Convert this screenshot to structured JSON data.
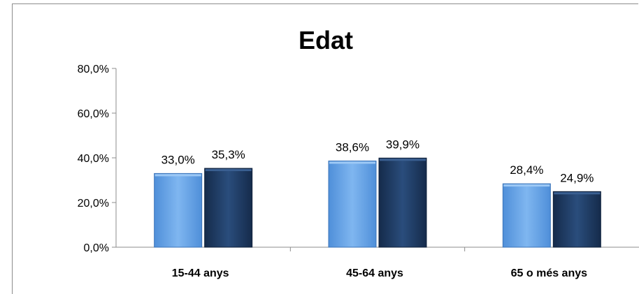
{
  "chart_data": {
    "type": "bar",
    "title": "Edat",
    "xlabel": "",
    "ylabel": "",
    "categories": [
      "15-44 anys",
      "45-64 anys",
      "65 o més anys"
    ],
    "series": [
      {
        "values": [
          33.0,
          38.6,
          28.4
        ],
        "labels": [
          "33,0%",
          "38,6%",
          "28,4%"
        ],
        "color": "#6fa8e8"
      },
      {
        "values": [
          35.3,
          39.9,
          24.9
        ],
        "labels": [
          "35,3%",
          "39,9%",
          "24,9%"
        ],
        "color": "#1f3b63"
      }
    ],
    "ylim": [
      0,
      80
    ],
    "yticks": [
      0,
      20,
      40,
      60,
      80
    ],
    "ytick_labels": [
      "0,0%",
      "20,0%",
      "40,0%",
      "60,0%",
      "80,0%"
    ],
    "grid": false,
    "legend": "none"
  }
}
